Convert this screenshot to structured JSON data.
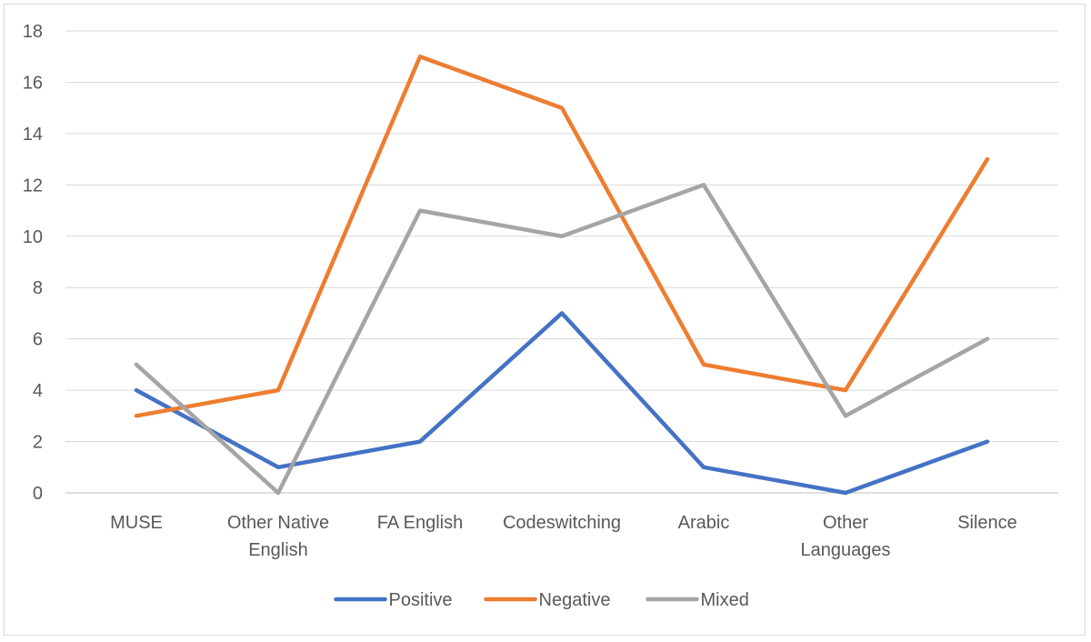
{
  "chart_data": {
    "type": "line",
    "title": "",
    "xlabel": "",
    "ylabel": "",
    "ylim": [
      0,
      18
    ],
    "ytick_step": 2,
    "grid": true,
    "legend_position": "bottom",
    "categories": [
      [
        "MUSE"
      ],
      [
        "Other Native",
        "English"
      ],
      [
        "FA English"
      ],
      [
        "Codeswitching"
      ],
      [
        "Arabic"
      ],
      [
        "Other",
        "Languages"
      ],
      [
        "Silence"
      ]
    ],
    "series": [
      {
        "name": "Positive",
        "color": "#4472C4",
        "values": [
          4,
          1,
          2,
          7,
          1,
          0,
          2
        ]
      },
      {
        "name": "Negative",
        "color": "#ED7D31",
        "values": [
          3,
          4,
          17,
          15,
          5,
          4,
          13
        ]
      },
      {
        "name": "Mixed",
        "color": "#A5A5A5",
        "values": [
          5,
          0,
          11,
          10,
          12,
          3,
          6
        ]
      }
    ]
  }
}
